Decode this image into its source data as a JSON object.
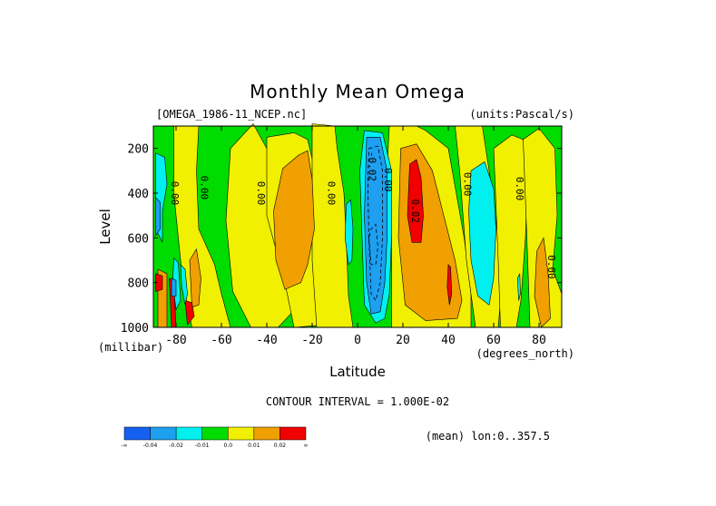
{
  "chart_data": {
    "type": "contour",
    "title": "Monthly Mean Omega",
    "file_label": "[OMEGA_1986-11_NCEP.nc]",
    "units_label": "(units:Pascal/s)",
    "xlabel": "Latitude",
    "xunits": "(degrees_north)",
    "ylabel": "Level",
    "yunits": "(millibar)",
    "x_ticks": [
      "-80",
      "-60",
      "-40",
      "-20",
      "0",
      "20",
      "40",
      "60",
      "80"
    ],
    "x_tick_values": [
      -80,
      -60,
      -40,
      -20,
      0,
      20,
      40,
      60,
      80
    ],
    "y_ticks": [
      "200",
      "400",
      "600",
      "800",
      "1000"
    ],
    "y_tick_values": [
      200,
      400,
      600,
      800,
      1000
    ],
    "xlim": [
      -90,
      90
    ],
    "ylim": [
      1000,
      100
    ],
    "contour_interval_text": "CONTOUR INTERVAL = 1.000E-02",
    "mean_note": "(mean) lon:0..357.5",
    "colorbar": {
      "colors": [
        "#1560f0",
        "#1e9ff0",
        "#00f0f0",
        "#00dc00",
        "#f0f000",
        "#f0a000",
        "#f00000"
      ],
      "tick_labels": [
        "-∞",
        "-0.04",
        "-0.02",
        "-0.01",
        "0.0",
        "0.01",
        "0.02",
        "∞"
      ]
    },
    "contour_labels": [
      {
        "text": "0.00",
        "lat": -82,
        "lev": 400
      },
      {
        "text": "0.00",
        "lat": -69,
        "lev": 375
      },
      {
        "text": "0.00",
        "lat": -44,
        "lev": 400
      },
      {
        "text": "0.00",
        "lat": -13,
        "lev": 400
      },
      {
        "text": "-0.02",
        "lat": 5,
        "lev": 280
      },
      {
        "text": "0.00",
        "lat": 12,
        "lev": 340
      },
      {
        "text": "0.02",
        "lat": 24,
        "lev": 480
      },
      {
        "text": "0.00",
        "lat": 47,
        "lev": 360
      },
      {
        "text": "0.00",
        "lat": 70,
        "lev": 380
      },
      {
        "text": "0.00",
        "lat": 84,
        "lev": 730
      }
    ],
    "regions": [
      {
        "level": "0.0",
        "color": "#f0f000",
        "pts": [
          [
            -77,
            100
          ],
          [
            -70,
            100
          ],
          [
            -71,
            300
          ],
          [
            -70,
            560
          ],
          [
            -63,
            720
          ],
          [
            -60,
            850
          ],
          [
            -56,
            1000
          ],
          [
            -73,
            1000
          ],
          [
            -77,
            800
          ],
          [
            -79,
            600
          ],
          [
            -81,
            400
          ],
          [
            -81,
            100
          ]
        ]
      },
      {
        "level": "0.0",
        "color": "#f0f000",
        "pts": [
          [
            -56,
            200
          ],
          [
            -46,
            90
          ],
          [
            -40,
            200
          ],
          [
            -33,
            520
          ],
          [
            -25,
            800
          ],
          [
            -22,
            860
          ],
          [
            -35,
            1000
          ],
          [
            -47,
            1000
          ],
          [
            -55,
            840
          ],
          [
            -58,
            520
          ]
        ]
      },
      {
        "level": "0.0",
        "color": "#f0f000",
        "pts": [
          [
            -40,
            150
          ],
          [
            -28,
            130
          ],
          [
            -22,
            160
          ],
          [
            -16,
            420
          ],
          [
            -9,
            680
          ],
          [
            -4,
            980
          ],
          [
            -28,
            1000
          ],
          [
            -32,
            800
          ],
          [
            -40,
            500
          ]
        ]
      },
      {
        "level": "0.0",
        "color": "#f0f000",
        "pts": [
          [
            -20,
            90
          ],
          [
            -10,
            100
          ],
          [
            -9,
            200
          ],
          [
            -6,
            400
          ],
          [
            -5,
            600
          ],
          [
            -4,
            860
          ],
          [
            -2,
            1000
          ],
          [
            -18,
            1000
          ],
          [
            -20,
            700
          ]
        ]
      },
      {
        "level": "0.0",
        "color": "#f0f000",
        "pts": [
          [
            14,
            100
          ],
          [
            26,
            100
          ],
          [
            30,
            120
          ],
          [
            40,
            200
          ],
          [
            47,
            600
          ],
          [
            50,
            850
          ],
          [
            50,
            1000
          ],
          [
            15,
            1000
          ],
          [
            15,
            600
          ],
          [
            13,
            300
          ]
        ]
      },
      {
        "level": "0.0",
        "color": "#f0f000",
        "pts": [
          [
            43,
            100
          ],
          [
            55,
            100
          ],
          [
            58,
            300
          ],
          [
            62,
            600
          ],
          [
            63,
            880
          ],
          [
            62,
            1000
          ],
          [
            52,
            1000
          ],
          [
            48,
            700
          ],
          [
            45,
            300
          ]
        ]
      },
      {
        "level": "0.0",
        "color": "#f0f000",
        "pts": [
          [
            60,
            200
          ],
          [
            68,
            140
          ],
          [
            73,
            160
          ],
          [
            75,
            300
          ],
          [
            74,
            600
          ],
          [
            72,
            880
          ],
          [
            70,
            1000
          ],
          [
            63,
            1000
          ],
          [
            62,
            700
          ]
        ]
      },
      {
        "level": "0.0",
        "color": "#f0f000",
        "pts": [
          [
            73,
            160
          ],
          [
            80,
            110
          ],
          [
            87,
            200
          ],
          [
            88,
            500
          ],
          [
            86,
            740
          ],
          [
            90,
            850
          ],
          [
            90,
            1000
          ],
          [
            76,
            1000
          ],
          [
            75,
            700
          ]
        ]
      },
      {
        "level": "0.01",
        "color": "#f0a000",
        "pts": [
          [
            -33,
            290
          ],
          [
            -26,
            230
          ],
          [
            -22,
            210
          ],
          [
            -20,
            340
          ],
          [
            -19,
            560
          ],
          [
            -22,
            720
          ],
          [
            -25,
            800
          ],
          [
            -32,
            830
          ],
          [
            -36,
            700
          ],
          [
            -37,
            480
          ]
        ]
      },
      {
        "level": "0.01",
        "color": "#f0a000",
        "pts": [
          [
            19,
            200
          ],
          [
            26,
            180
          ],
          [
            33,
            300
          ],
          [
            38,
            500
          ],
          [
            43,
            700
          ],
          [
            46,
            880
          ],
          [
            44,
            960
          ],
          [
            30,
            970
          ],
          [
            21,
            900
          ],
          [
            18,
            600
          ]
        ]
      },
      {
        "level": "0.01",
        "color": "#f0a000",
        "pts": [
          [
            79,
            660
          ],
          [
            82,
            600
          ],
          [
            84,
            760
          ],
          [
            85,
            960
          ],
          [
            81,
            1000
          ],
          [
            78,
            860
          ]
        ]
      },
      {
        "level": "0.01",
        "color": "#f0a000",
        "pts": [
          [
            -74,
            700
          ],
          [
            -71,
            650
          ],
          [
            -69,
            780
          ],
          [
            -70,
            900
          ],
          [
            -73,
            910
          ]
        ]
      },
      {
        "level": "0.01",
        "color": "#f0a000",
        "pts": [
          [
            -88,
            740
          ],
          [
            -84,
            760
          ],
          [
            -84,
            1000
          ],
          [
            -88,
            1000
          ]
        ]
      },
      {
        "level": "0.02",
        "color": "#f00000",
        "pts": [
          [
            23,
            270
          ],
          [
            26,
            250
          ],
          [
            28,
            330
          ],
          [
            29,
            500
          ],
          [
            28,
            620
          ],
          [
            24,
            620
          ],
          [
            22,
            500
          ]
        ]
      },
      {
        "level": "0.02",
        "color": "#f00000",
        "pts": [
          [
            40,
            720
          ],
          [
            41,
            730
          ],
          [
            41.5,
            850
          ],
          [
            40.5,
            900
          ],
          [
            39.5,
            820
          ]
        ]
      },
      {
        "level": "0.02",
        "color": "#f00000",
        "pts": [
          [
            -89,
            760
          ],
          [
            -86,
            770
          ],
          [
            -86,
            830
          ],
          [
            -89,
            840
          ]
        ]
      },
      {
        "level": "0.02",
        "color": "#f00000",
        "pts": [
          [
            -83,
            780
          ],
          [
            -81,
            800
          ],
          [
            -80,
            1000
          ],
          [
            -82,
            1000
          ]
        ]
      },
      {
        "level": "0.02",
        "color": "#f00000",
        "pts": [
          [
            -76,
            880
          ],
          [
            -73,
            890
          ],
          [
            -72,
            950
          ],
          [
            -75,
            990
          ]
        ]
      },
      {
        "level": "-0.01",
        "color": "#00f0f0",
        "pts": [
          [
            -89,
            220
          ],
          [
            -85,
            240
          ],
          [
            -84,
            360
          ],
          [
            -86,
            480
          ],
          [
            -86,
            620
          ],
          [
            -88,
            580
          ],
          [
            -89,
            400
          ]
        ]
      },
      {
        "level": "-0.01",
        "color": "#00f0f0",
        "pts": [
          [
            -81,
            690
          ],
          [
            -79,
            710
          ],
          [
            -78,
            880
          ],
          [
            -80,
            920
          ],
          [
            -81.5,
            800
          ]
        ]
      },
      {
        "level": "-0.01",
        "color": "#00f0f0",
        "pts": [
          [
            -78,
            720
          ],
          [
            -76,
            740
          ],
          [
            -75,
            850
          ],
          [
            -76,
            900
          ],
          [
            -77.5,
            820
          ]
        ]
      },
      {
        "level": "-0.01",
        "color": "#00f0f0",
        "pts": [
          [
            -5,
            450
          ],
          [
            -3,
            430
          ],
          [
            -2,
            560
          ],
          [
            -2.5,
            700
          ],
          [
            -4,
            720
          ],
          [
            -5.5,
            600
          ]
        ]
      },
      {
        "level": "-0.01",
        "color": "#00f0f0",
        "pts": [
          [
            3,
            120
          ],
          [
            11,
            130
          ],
          [
            15,
            300
          ],
          [
            15,
            600
          ],
          [
            14,
            850
          ],
          [
            12,
            960
          ],
          [
            8,
            980
          ],
          [
            3,
            900
          ],
          [
            2,
            600
          ],
          [
            1,
            300
          ]
        ]
      },
      {
        "level": "-0.01",
        "color": "#00f0f0",
        "pts": [
          [
            50,
            300
          ],
          [
            56,
            260
          ],
          [
            60,
            380
          ],
          [
            61,
            560
          ],
          [
            60,
            780
          ],
          [
            58,
            900
          ],
          [
            53,
            860
          ],
          [
            50,
            700
          ],
          [
            49,
            480
          ]
        ]
      },
      {
        "level": "-0.01",
        "color": "#00f0f0",
        "pts": [
          [
            70.5,
            780
          ],
          [
            71.5,
            760
          ],
          [
            71.8,
            850
          ],
          [
            71,
            880
          ]
        ]
      },
      {
        "level": "-0.02",
        "color": "#1e9ff0",
        "pts": [
          [
            4,
            150
          ],
          [
            10,
            150
          ],
          [
            13,
            300
          ],
          [
            13,
            600
          ],
          [
            12,
            800
          ],
          [
            10,
            930
          ],
          [
            6,
            940
          ],
          [
            4,
            800
          ],
          [
            3,
            500
          ]
        ]
      },
      {
        "level": "-0.02",
        "color": "#1e9ff0",
        "pts": [
          [
            -89,
            420
          ],
          [
            -87,
            440
          ],
          [
            -87,
            560
          ],
          [
            -89,
            590
          ]
        ]
      },
      {
        "level": "-0.02",
        "color": "#1e9ff0",
        "pts": [
          [
            -82,
            780
          ],
          [
            -80,
            790
          ],
          [
            -80,
            860
          ],
          [
            -82,
            860
          ]
        ]
      }
    ],
    "dashed_contours": [
      [
        [
          5,
          200
        ],
        [
          9,
          190
        ],
        [
          11,
          300
        ],
        [
          11,
          600
        ],
        [
          10,
          800
        ],
        [
          8,
          880
        ],
        [
          6,
          850
        ],
        [
          5,
          600
        ],
        [
          4.5,
          350
        ]
      ],
      [
        [
          5,
          600
        ],
        [
          6,
          720
        ],
        [
          8,
          720
        ],
        [
          9,
          640
        ],
        [
          8,
          540
        ],
        [
          6,
          560
        ]
      ]
    ]
  }
}
